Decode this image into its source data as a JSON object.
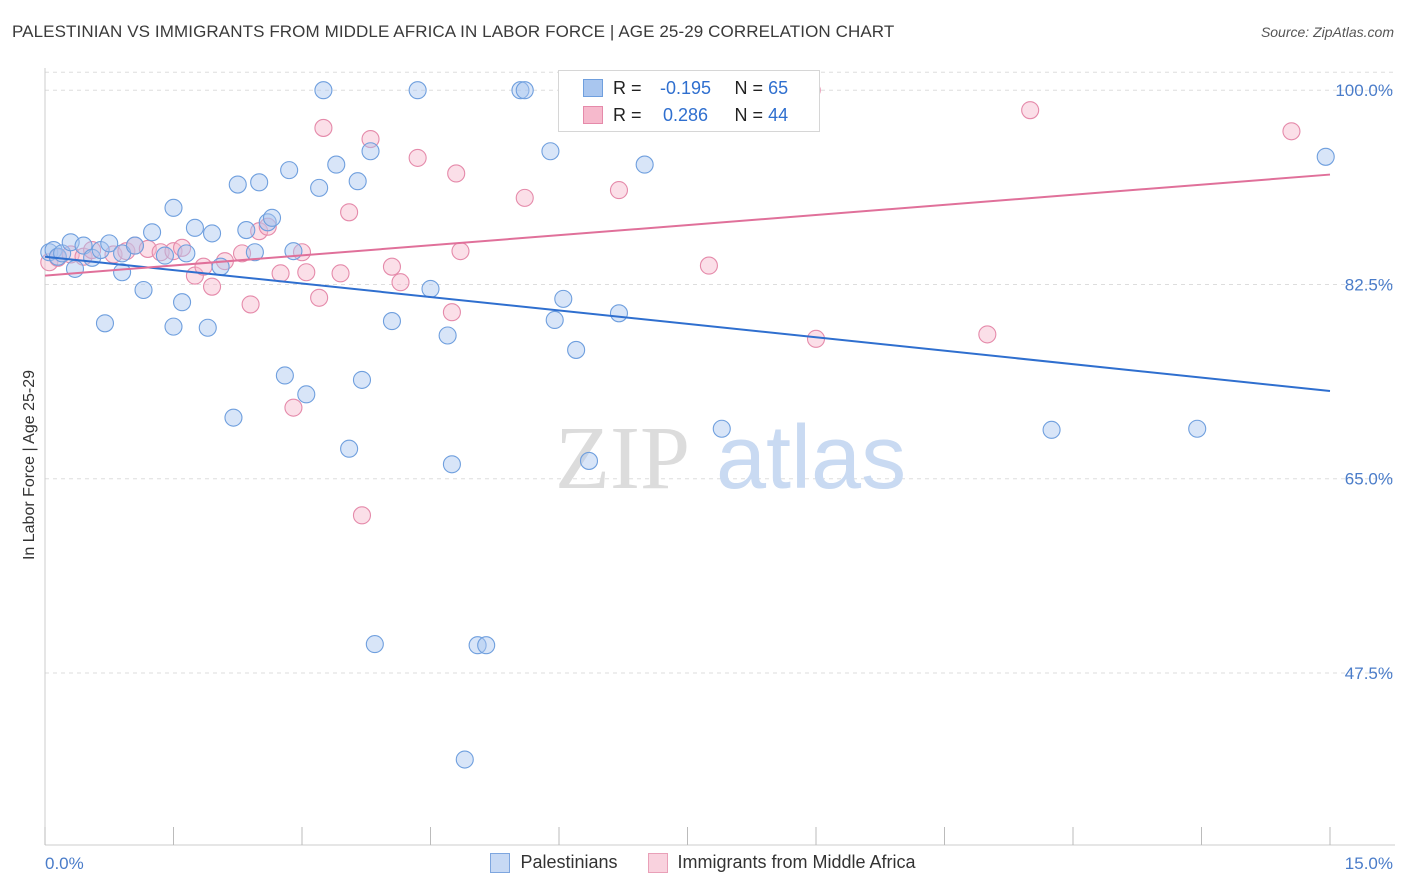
{
  "header": {
    "title": "PALESTINIAN VS IMMIGRANTS FROM MIDDLE AFRICA IN LABOR FORCE | AGE 25-29 CORRELATION CHART",
    "source": "Source: ZipAtlas.com"
  },
  "watermark": {
    "zip": "ZIP",
    "atlas": "atlas"
  },
  "legend": {
    "rows": [
      {
        "r_label": "R =",
        "r_value": "-0.195",
        "n_label": "N =",
        "n_value": "65"
      },
      {
        "r_label": "R =",
        "r_value": "0.286",
        "n_label": "N =",
        "n_value": "44"
      }
    ]
  },
  "colors": {
    "blue_fill": "#a9c6ef",
    "blue_stroke": "#6f9fde",
    "blue_line": "#2f6fcf",
    "pink_fill": "#f6b9cc",
    "pink_stroke": "#e58aaa",
    "pink_line": "#e0709a",
    "grid": "#dddddd",
    "tick_text": "#4a7cc9"
  },
  "chart_data": {
    "type": "scatter",
    "title": "PALESTINIAN VS IMMIGRANTS FROM MIDDLE AFRICA IN LABOR FORCE | AGE 25-29 CORRELATION CHART",
    "xlabel": "",
    "ylabel": "In Labor Force | Age 25-29",
    "xlim": [
      0,
      15
    ],
    "ylim": [
      32,
      102
    ],
    "x_tick_labels": [
      "0.0%",
      "15.0%"
    ],
    "y_ticks": [
      47.5,
      65.0,
      82.5,
      100.0
    ],
    "y_tick_labels": [
      "47.5%",
      "65.0%",
      "82.5%",
      "100.0%"
    ],
    "grid": true,
    "legend_position": "bottom-center",
    "series": [
      {
        "name": "Palestinians",
        "r": -0.195,
        "n": 65,
        "trend": {
          "x": [
            0,
            15
          ],
          "y": [
            85.0,
            72.9
          ]
        },
        "points": [
          [
            0.05,
            85.4
          ],
          [
            0.1,
            85.6
          ],
          [
            0.15,
            85.0
          ],
          [
            0.2,
            85.3
          ],
          [
            0.3,
            86.3
          ],
          [
            0.35,
            83.9
          ],
          [
            0.45,
            86.0
          ],
          [
            0.55,
            84.9
          ],
          [
            0.65,
            85.6
          ],
          [
            0.7,
            79.0
          ],
          [
            0.75,
            86.2
          ],
          [
            0.9,
            85.3
          ],
          [
            0.9,
            83.6
          ],
          [
            1.05,
            86.0
          ],
          [
            1.15,
            82.0
          ],
          [
            1.25,
            87.2
          ],
          [
            1.4,
            85.1
          ],
          [
            1.5,
            89.4
          ],
          [
            1.5,
            78.7
          ],
          [
            1.6,
            80.9
          ],
          [
            1.65,
            85.3
          ],
          [
            1.75,
            87.6
          ],
          [
            1.9,
            78.6
          ],
          [
            1.95,
            87.1
          ],
          [
            2.05,
            84.1
          ],
          [
            2.2,
            70.5
          ],
          [
            2.25,
            91.5
          ],
          [
            2.35,
            87.4
          ],
          [
            2.45,
            85.4
          ],
          [
            2.5,
            91.7
          ],
          [
            2.6,
            88.1
          ],
          [
            2.65,
            88.5
          ],
          [
            2.8,
            74.3
          ],
          [
            2.85,
            92.8
          ],
          [
            2.9,
            85.5
          ],
          [
            3.05,
            72.6
          ],
          [
            3.2,
            91.2
          ],
          [
            3.25,
            100.0
          ],
          [
            3.4,
            93.3
          ],
          [
            3.55,
            67.7
          ],
          [
            3.65,
            91.8
          ],
          [
            3.7,
            73.9
          ],
          [
            3.8,
            94.5
          ],
          [
            3.85,
            50.1
          ],
          [
            4.05,
            79.2
          ],
          [
            4.35,
            100.0
          ],
          [
            4.5,
            82.1
          ],
          [
            4.7,
            77.9
          ],
          [
            4.75,
            66.3
          ],
          [
            4.9,
            39.7
          ],
          [
            5.05,
            50.0
          ],
          [
            5.15,
            50.0
          ],
          [
            5.55,
            100.0
          ],
          [
            5.6,
            100.0
          ],
          [
            5.9,
            94.5
          ],
          [
            5.95,
            79.3
          ],
          [
            6.05,
            81.2
          ],
          [
            6.2,
            76.6
          ],
          [
            6.35,
            66.6
          ],
          [
            6.7,
            79.9
          ],
          [
            7.0,
            93.3
          ],
          [
            7.9,
            69.5
          ],
          [
            11.75,
            69.4
          ],
          [
            13.45,
            69.5
          ],
          [
            14.95,
            94.0
          ]
        ]
      },
      {
        "name": "Immigrants from Middle Africa",
        "r": 0.286,
        "n": 44,
        "trend": {
          "x": [
            0,
            15
          ],
          "y": [
            83.3,
            92.4
          ]
        },
        "points": [
          [
            0.05,
            84.5
          ],
          [
            0.15,
            84.9
          ],
          [
            0.3,
            85.2
          ],
          [
            0.45,
            85.0
          ],
          [
            0.55,
            85.6
          ],
          [
            0.8,
            85.2
          ],
          [
            0.95,
            85.5
          ],
          [
            1.05,
            86.0
          ],
          [
            1.2,
            85.7
          ],
          [
            1.35,
            85.4
          ],
          [
            1.5,
            85.5
          ],
          [
            1.6,
            85.8
          ],
          [
            1.75,
            83.3
          ],
          [
            1.85,
            84.1
          ],
          [
            1.95,
            82.3
          ],
          [
            2.1,
            84.6
          ],
          [
            2.3,
            85.3
          ],
          [
            2.4,
            80.7
          ],
          [
            2.5,
            87.3
          ],
          [
            2.6,
            87.7
          ],
          [
            2.75,
            83.5
          ],
          [
            2.9,
            71.4
          ],
          [
            3.0,
            85.4
          ],
          [
            3.05,
            83.6
          ],
          [
            3.2,
            81.3
          ],
          [
            3.25,
            96.6
          ],
          [
            3.45,
            83.5
          ],
          [
            3.55,
            89.0
          ],
          [
            3.7,
            61.7
          ],
          [
            3.8,
            95.6
          ],
          [
            4.05,
            84.1
          ],
          [
            4.15,
            82.7
          ],
          [
            4.35,
            93.9
          ],
          [
            4.75,
            80.0
          ],
          [
            4.8,
            92.5
          ],
          [
            4.85,
            85.5
          ],
          [
            5.6,
            90.3
          ],
          [
            6.7,
            91.0
          ],
          [
            7.75,
            84.2
          ],
          [
            8.95,
            100.0
          ],
          [
            9.0,
            77.6
          ],
          [
            11.0,
            78.0
          ],
          [
            11.5,
            98.2
          ],
          [
            14.55,
            96.3
          ]
        ]
      }
    ]
  },
  "bottom_legend": {
    "items": [
      {
        "label": "Palestinians"
      },
      {
        "label": "Immigrants from Middle Africa"
      }
    ]
  }
}
